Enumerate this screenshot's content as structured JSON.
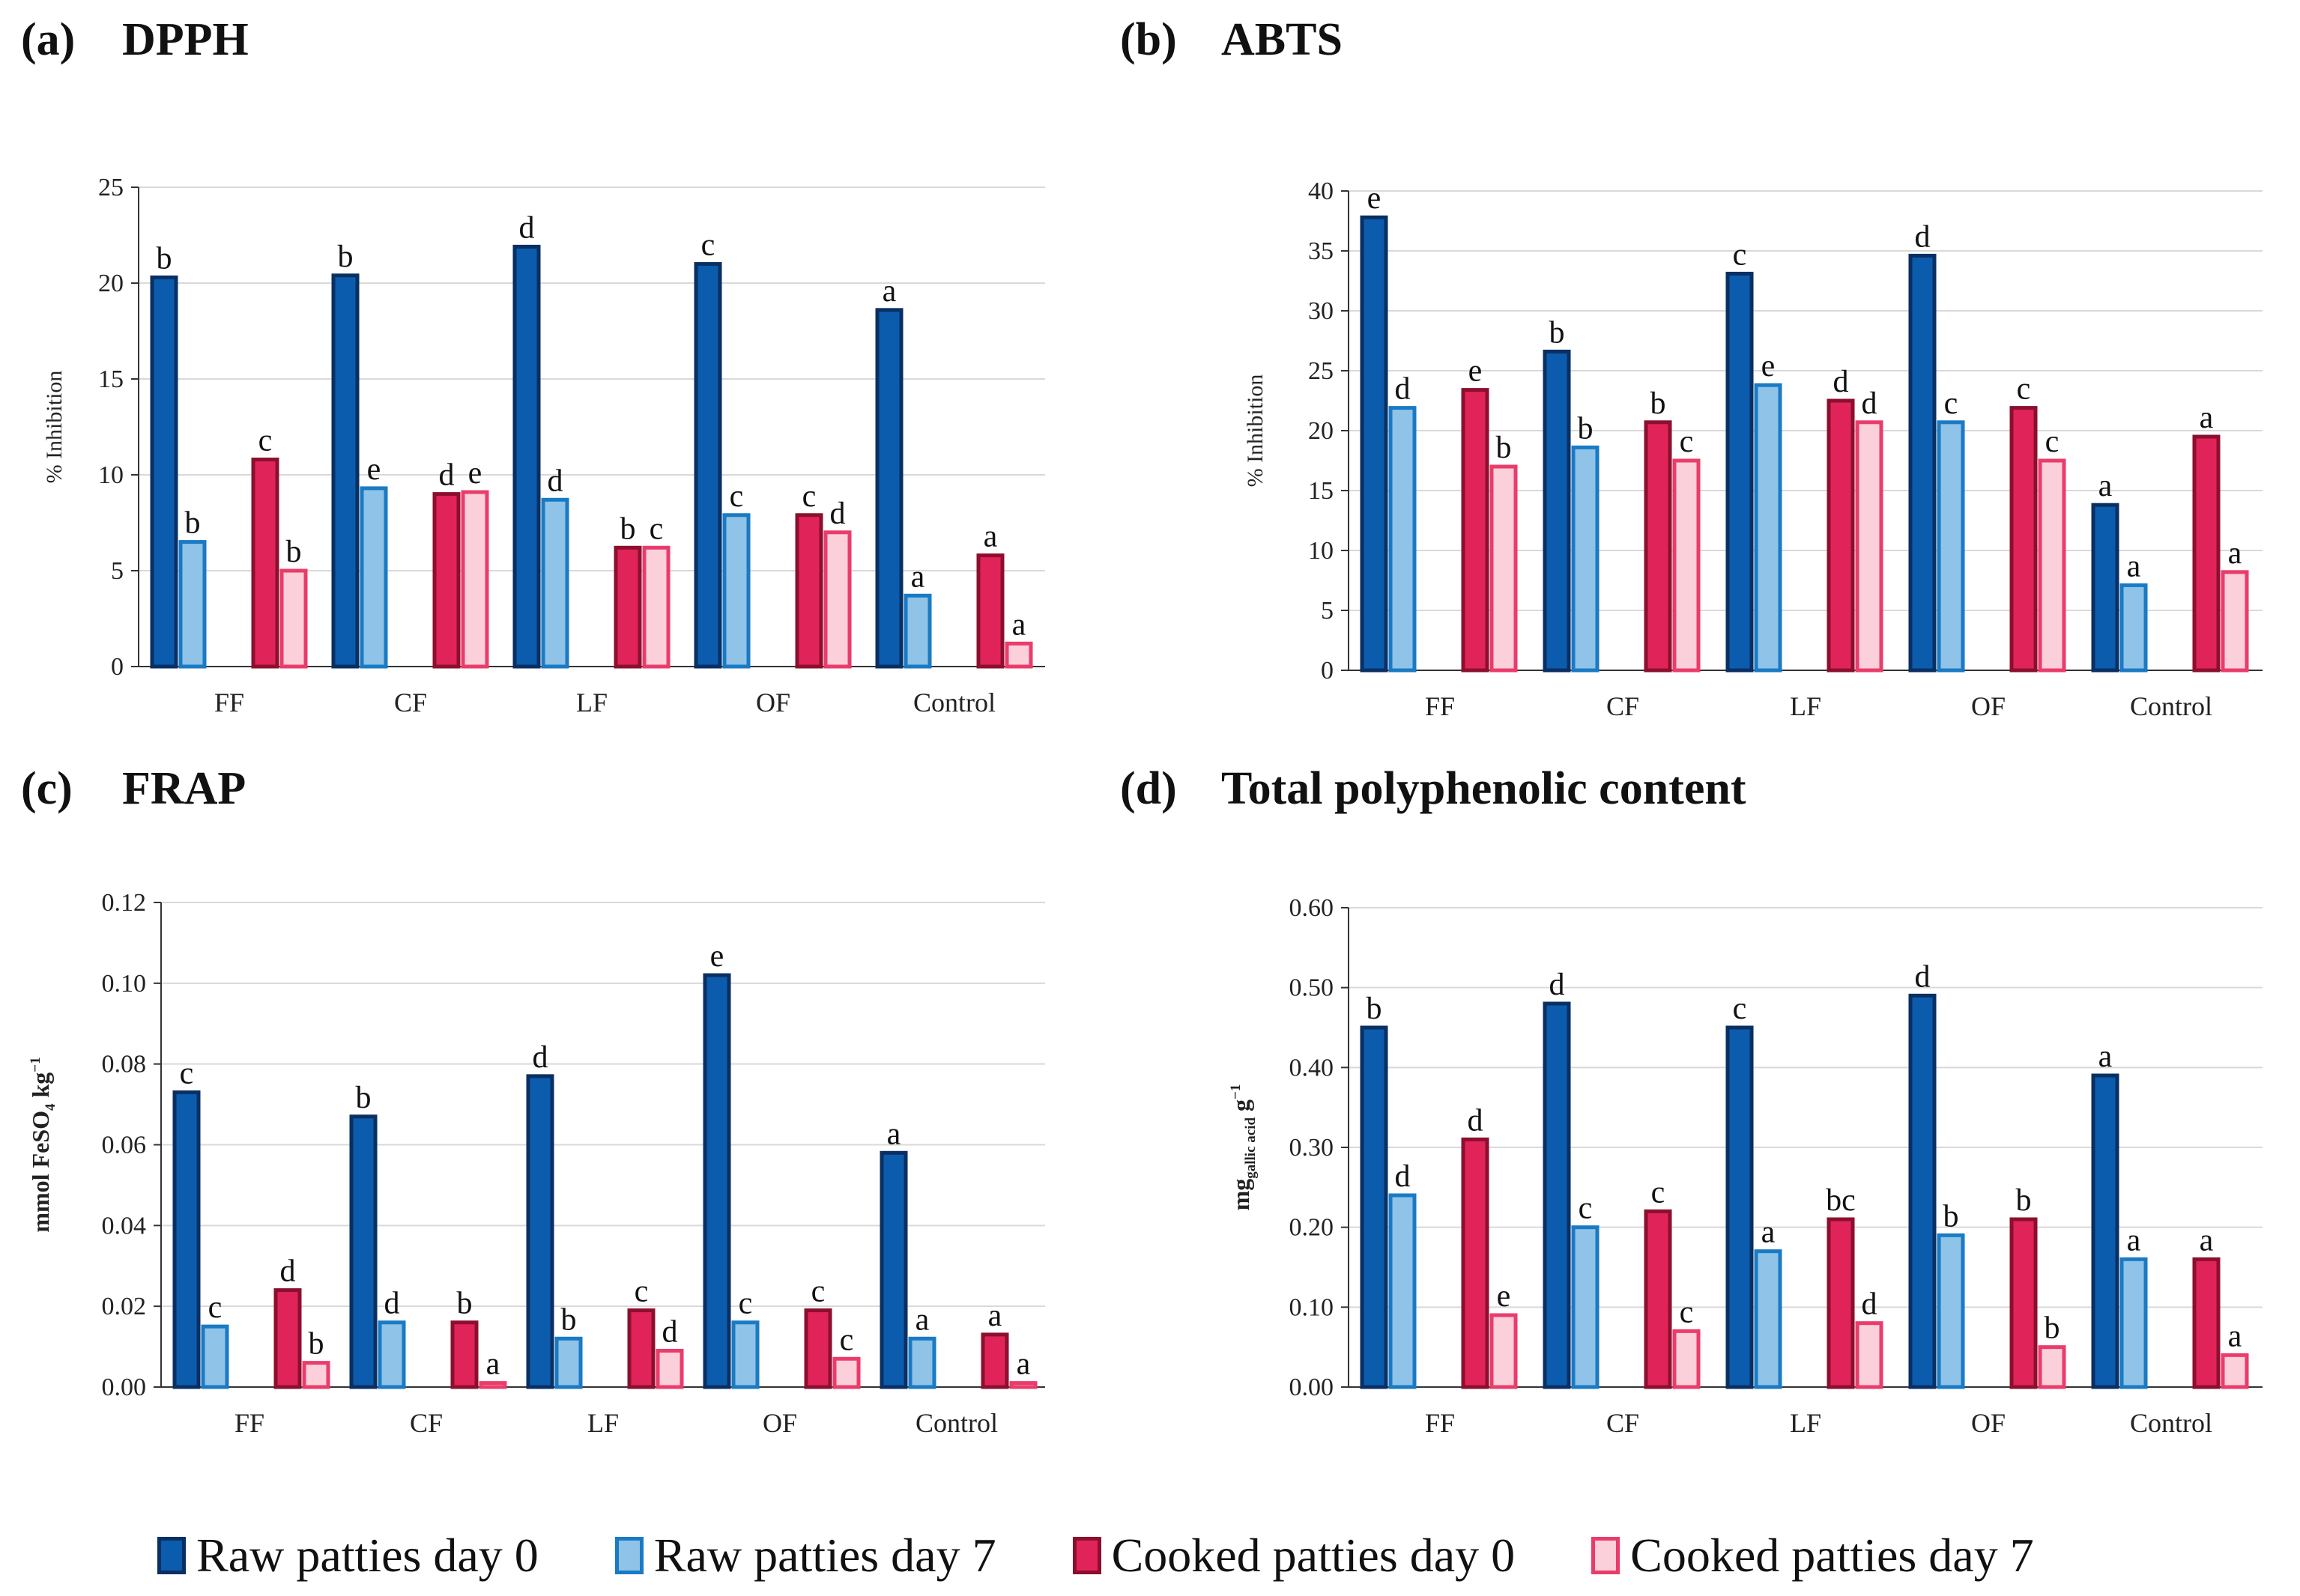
{
  "legend": [
    {
      "label": "Raw patties day 0",
      "fill": "#0b5cad",
      "stroke": "#0a2f63"
    },
    {
      "label": "Raw patties day 7",
      "fill": "#8fc3e8",
      "stroke": "#1a7ac4"
    },
    {
      "label": "Cooked patties day 0",
      "fill": "#e0245a",
      "stroke": "#8c0f2e"
    },
    {
      "label": "Cooked patties day 7",
      "fill": "#fbd0db",
      "stroke": "#ea3c6b"
    }
  ],
  "chart_data": [
    {
      "panel": "(a)",
      "title": "DPPH",
      "type": "bar",
      "ylabel": "% Inhibition",
      "ylim": [
        0,
        25
      ],
      "yticks": [
        "0",
        "5",
        "10",
        "15",
        "20",
        "25"
      ],
      "categories": [
        "FF",
        "CF",
        "LF",
        "OF",
        "Control"
      ],
      "series": [
        {
          "name": "Raw patties day 0",
          "values": [
            20.3,
            20.4,
            21.9,
            21.0,
            18.6
          ],
          "labels": [
            "b",
            "b",
            "d",
            "c",
            "a"
          ]
        },
        {
          "name": "Raw patties day 7",
          "values": [
            6.5,
            9.3,
            8.7,
            7.9,
            3.7
          ],
          "labels": [
            "b",
            "e",
            "d",
            "c",
            "a"
          ]
        },
        {
          "name": "Cooked patties day 0",
          "values": [
            10.8,
            9.0,
            6.2,
            7.9,
            5.8
          ],
          "labels": [
            "c",
            "d",
            "b",
            "c",
            "a"
          ]
        },
        {
          "name": "Cooked patties day 7",
          "values": [
            5.0,
            9.1,
            6.2,
            7.0,
            1.2
          ],
          "labels": [
            "b",
            "e",
            "c",
            "d",
            "a"
          ]
        }
      ]
    },
    {
      "panel": "(b)",
      "title": "ABTS",
      "type": "bar",
      "ylabel": "% Inhibition",
      "ylim": [
        0,
        40
      ],
      "yticks": [
        "0",
        "5",
        "10",
        "15",
        "20",
        "25",
        "30",
        "35",
        "40"
      ],
      "categories": [
        "FF",
        "CF",
        "LF",
        "OF",
        "Control"
      ],
      "series": [
        {
          "name": "Raw patties day 0",
          "values": [
            37.8,
            26.6,
            33.1,
            34.6,
            13.8
          ],
          "labels": [
            "e",
            "b",
            "c",
            "d",
            "a"
          ]
        },
        {
          "name": "Raw patties day 7",
          "values": [
            21.9,
            18.6,
            23.8,
            20.7,
            7.1
          ],
          "labels": [
            "d",
            "b",
            "e",
            "c",
            "a"
          ]
        },
        {
          "name": "Cooked patties day 0",
          "values": [
            23.4,
            20.7,
            22.5,
            21.9,
            19.5
          ],
          "labels": [
            "e",
            "b",
            "d",
            "c",
            "a"
          ]
        },
        {
          "name": "Cooked patties day 7",
          "values": [
            17.0,
            17.5,
            20.7,
            17.5,
            8.2
          ],
          "labels": [
            "b",
            "c",
            "d",
            "c",
            "a"
          ]
        }
      ]
    },
    {
      "panel": "(c)",
      "title": "FRAP",
      "type": "bar",
      "ylabel_main": "mmol FeSO",
      "ylabel_sub": "4",
      "ylabel_tail": " kg",
      "ylabel_sup": "−1",
      "ylim": [
        0,
        0.12
      ],
      "yticks": [
        "0.00",
        "0.02",
        "0.04",
        "0.06",
        "0.08",
        "0.10",
        "0.12"
      ],
      "categories": [
        "FF",
        "CF",
        "LF",
        "OF",
        "Control"
      ],
      "series": [
        {
          "name": "Raw patties day 0",
          "values": [
            0.073,
            0.067,
            0.077,
            0.102,
            0.058
          ],
          "labels": [
            "c",
            "b",
            "d",
            "e",
            "a"
          ]
        },
        {
          "name": "Raw patties day 7",
          "values": [
            0.015,
            0.016,
            0.012,
            0.016,
            0.012
          ],
          "labels": [
            "c",
            "d",
            "b",
            "c",
            "a"
          ]
        },
        {
          "name": "Cooked patties day 0",
          "values": [
            0.024,
            0.016,
            0.019,
            0.019,
            0.013
          ],
          "labels": [
            "d",
            "b",
            "c",
            "c",
            "a"
          ]
        },
        {
          "name": "Cooked patties day 7",
          "values": [
            0.006,
            0.001,
            0.009,
            0.007,
            0.001
          ],
          "labels": [
            "b",
            "a",
            "d",
            "c",
            "a"
          ]
        }
      ]
    },
    {
      "panel": "(d)",
      "title": "Total polyphenolic content",
      "type": "bar",
      "ylabel_main": "mg",
      "ylabel_sub": "gallic acid",
      "ylabel_tail": " g",
      "ylabel_sup": "−1",
      "ylim": [
        0,
        0.6
      ],
      "yticks": [
        "0.00",
        "0.10",
        "0.20",
        "0.30",
        "0.40",
        "0.50",
        "0.60"
      ],
      "categories": [
        "FF",
        "CF",
        "LF",
        "OF",
        "Control"
      ],
      "series": [
        {
          "name": "Raw patties day 0",
          "values": [
            0.45,
            0.48,
            0.45,
            0.49,
            0.39
          ],
          "labels": [
            "b",
            "d",
            "c",
            "d",
            "a"
          ]
        },
        {
          "name": "Raw patties day 7",
          "values": [
            0.24,
            0.2,
            0.17,
            0.19,
            0.16
          ],
          "labels": [
            "d",
            "c",
            "a",
            "b",
            "a"
          ]
        },
        {
          "name": "Cooked patties day 0",
          "values": [
            0.31,
            0.22,
            0.21,
            0.21,
            0.16
          ],
          "labels": [
            "d",
            "c",
            "bc",
            "b",
            "a"
          ]
        },
        {
          "name": "Cooked patties day 7",
          "values": [
            0.09,
            0.07,
            0.08,
            0.05,
            0.04
          ],
          "labels": [
            "e",
            "c",
            "d",
            "b",
            "a"
          ]
        }
      ]
    }
  ]
}
